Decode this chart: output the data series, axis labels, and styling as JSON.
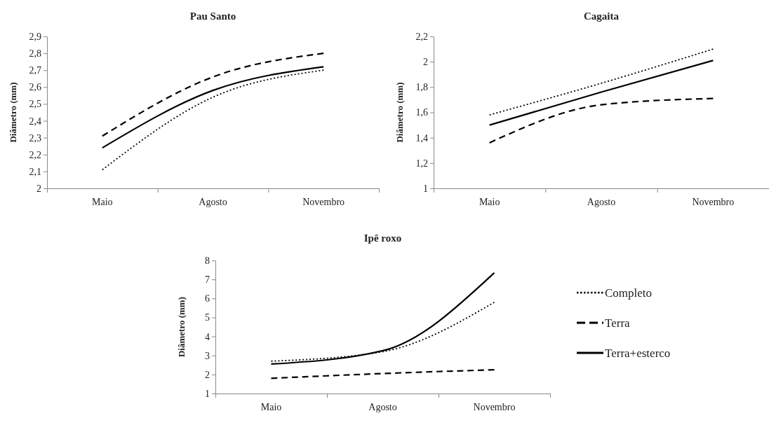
{
  "chart_data": [
    {
      "type": "line",
      "title": "Pau Santo",
      "ylabel": "Diâmetro (mm)",
      "categories": [
        "Maio",
        "Agosto",
        "Novembro"
      ],
      "ylim": [
        2,
        2.9
      ],
      "yticks": [
        2,
        {
          "value": 2.1,
          "label": "2,1"
        },
        {
          "value": 2.2,
          "label": "2,2"
        },
        {
          "value": 2.3,
          "label": "2,3"
        },
        {
          "value": 2.4,
          "label": "2,4"
        },
        {
          "value": 2.5,
          "label": "2,5"
        },
        {
          "value": 2.6,
          "label": "2,6"
        },
        {
          "value": 2.7,
          "label": "2,7"
        },
        {
          "value": 2.8,
          "label": "2,8"
        },
        {
          "value": 2.9,
          "label": "2,9"
        }
      ],
      "grid": false,
      "legend": false,
      "marker": "none",
      "series": [
        {
          "color": "#000000",
          "line_style": "dotted",
          "values": [
            2.11,
            2.54,
            2.7
          ]
        },
        {
          "color": "#000000",
          "line_style": "dashed",
          "values": [
            2.31,
            2.66,
            2.8
          ]
        },
        {
          "color": "#000000",
          "line_style": "solid",
          "values": [
            2.24,
            2.58,
            2.72
          ]
        }
      ]
    },
    {
      "type": "line",
      "title": "Cagaita",
      "ylabel": "Diâmetro (mm)",
      "categories": [
        "Maio",
        "Agosto",
        "Novembro"
      ],
      "ylim": [
        1,
        2.2
      ],
      "yticks": [
        1,
        {
          "value": 1.2,
          "label": "1,2"
        },
        {
          "value": 1.4,
          "label": "1,4"
        },
        {
          "value": 1.6,
          "label": "1,6"
        },
        {
          "value": 1.8,
          "label": "1,8"
        },
        2,
        {
          "value": 2.2,
          "label": "2,2"
        }
      ],
      "grid": false,
      "legend": false,
      "marker": "none",
      "series": [
        {
          "color": "#000000",
          "line_style": "dotted",
          "values": [
            1.58,
            1.83,
            2.1
          ]
        },
        {
          "color": "#000000",
          "line_style": "dashed",
          "values": [
            1.36,
            1.66,
            1.71
          ]
        },
        {
          "color": "#000000",
          "line_style": "solid",
          "values": [
            1.5,
            1.76,
            2.01
          ]
        }
      ]
    },
    {
      "type": "line",
      "title": "Ipê roxo",
      "ylabel": "Diâmetro (mm)",
      "categories": [
        "Maio",
        "Agosto",
        "Novembro"
      ],
      "ylim": [
        1,
        8
      ],
      "yticks": [
        1,
        2,
        3,
        4,
        5,
        6,
        7,
        8
      ],
      "grid": false,
      "legend": "right",
      "marker": "none",
      "series": [
        {
          "name": "Completo",
          "color": "#000000",
          "line_style": "dotted",
          "values": [
            2.7,
            3.2,
            5.8
          ]
        },
        {
          "name": "Terra",
          "color": "#000000",
          "line_style": "dashed",
          "values": [
            1.8,
            2.05,
            2.25
          ]
        },
        {
          "name": "Terra+esterco",
          "color": "#000000",
          "line_style": "solid",
          "values": [
            2.55,
            3.25,
            7.35
          ]
        }
      ]
    }
  ]
}
